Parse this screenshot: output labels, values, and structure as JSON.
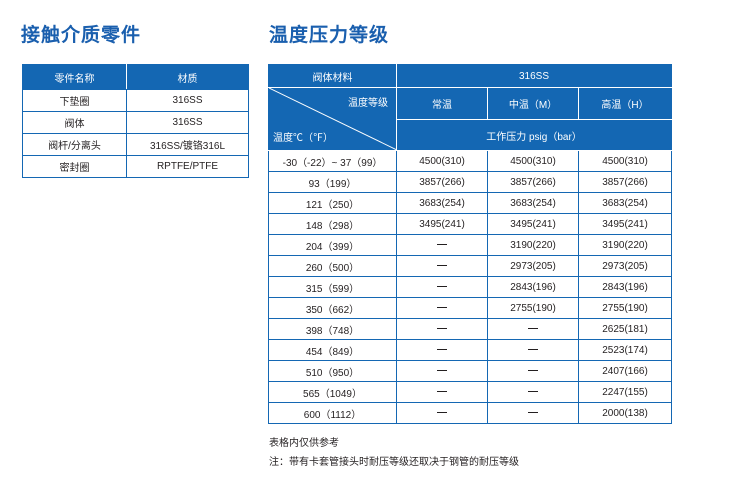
{
  "left_heading": "接触介质零件",
  "right_heading": "温度压力等级",
  "parts_table": {
    "headers": [
      "零件名称",
      "材质"
    ],
    "rows": [
      [
        "下垫圈",
        "316SS"
      ],
      [
        "阀体",
        "316SS"
      ],
      [
        "阀杆/分离头",
        "316SS/镀铬316L"
      ],
      [
        "密封圈",
        "RPTFE/PTFE"
      ]
    ]
  },
  "rating_table": {
    "body_material_label": "阀体材料",
    "material": "316SS",
    "grade_label": "温度等级",
    "temp_label": "温度℃（℉）",
    "grade_headers": [
      "常温",
      "中温（M）",
      "高温（H）"
    ],
    "pressure_label": "工作压力 psig（bar）",
    "rows": [
      {
        "temp": "-30（-22）~ 37（99）",
        "normal": "4500(310)",
        "mid": "4500(310)",
        "high": "4500(310)"
      },
      {
        "temp": "93（199）",
        "normal": "3857(266)",
        "mid": "3857(266)",
        "high": "3857(266)"
      },
      {
        "temp": "121（250）",
        "normal": "3683(254)",
        "mid": "3683(254)",
        "high": "3683(254)"
      },
      {
        "temp": "148（298）",
        "normal": "3495(241)",
        "mid": "3495(241)",
        "high": "3495(241)"
      },
      {
        "temp": "204（399）",
        "normal": "",
        "mid": "3190(220)",
        "high": "3190(220)"
      },
      {
        "temp": "260（500）",
        "normal": "",
        "mid": "2973(205)",
        "high": "2973(205)"
      },
      {
        "temp": "315（599）",
        "normal": "",
        "mid": "2843(196)",
        "high": "2843(196)"
      },
      {
        "temp": "350（662）",
        "normal": "",
        "mid": "2755(190)",
        "high": "2755(190)"
      },
      {
        "temp": "398（748）",
        "normal": "",
        "mid": "",
        "high": "2625(181)"
      },
      {
        "temp": "454（849）",
        "normal": "",
        "mid": "",
        "high": "2523(174)"
      },
      {
        "temp": "510（950）",
        "normal": "",
        "mid": "",
        "high": "2407(166)"
      },
      {
        "temp": "565（1049）",
        "normal": "",
        "mid": "",
        "high": "2247(155)"
      },
      {
        "temp": "600（1112）",
        "normal": "",
        "mid": "",
        "high": "2000(138)"
      }
    ]
  },
  "notes": [
    "表格内仅供参考",
    "注：带有卡套管接头时耐压等级还取决于钢管的耐压等级"
  ]
}
